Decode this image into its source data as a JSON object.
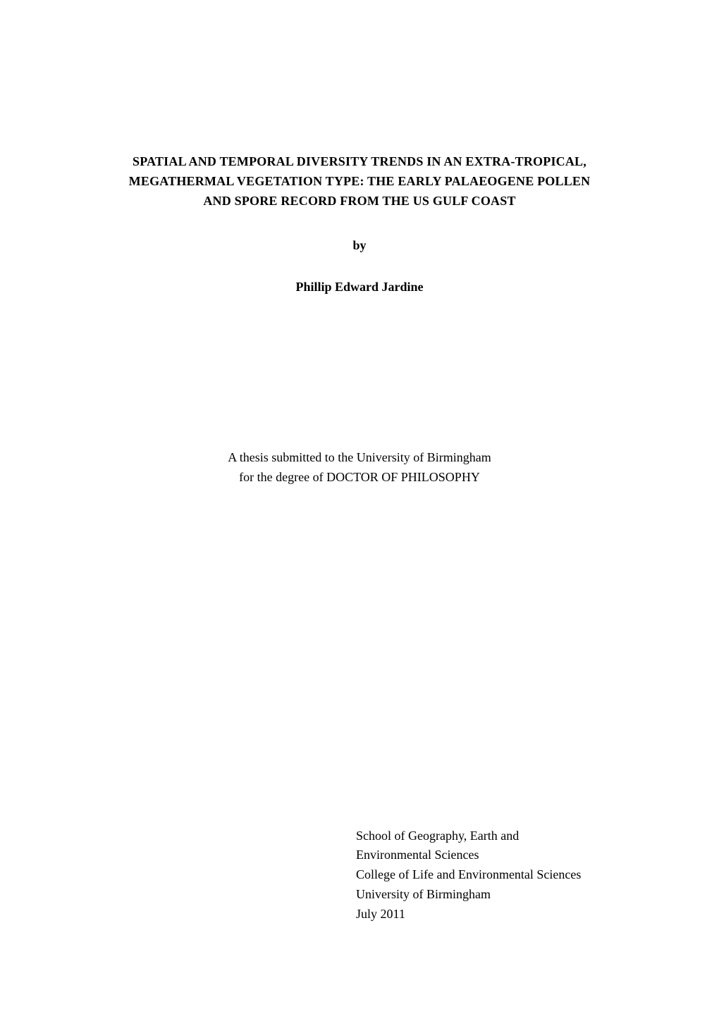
{
  "page": {
    "background_color": "#ffffff",
    "text_color": "#000000",
    "font_family": "Palatino Linotype, Book Antiqua, Palatino, Georgia, serif"
  },
  "title": {
    "line1": "SPATIAL AND TEMPORAL DIVERSITY TRENDS IN AN EXTRA-TROPICAL,",
    "line2": "MEGATHERMAL VEGETATION TYPE: THE EARLY PALAEOGENE POLLEN",
    "line3": "AND SPORE RECORD FROM THE US GULF COAST",
    "font_size_pt": 12,
    "font_weight": "bold"
  },
  "byline": {
    "text": "by",
    "font_size_pt": 12,
    "font_weight": "bold"
  },
  "author": {
    "text": "Phillip Edward Jardine",
    "font_size_pt": 12,
    "font_weight": "bold"
  },
  "submission": {
    "line1": "A thesis submitted to the University of Birmingham",
    "line2": "for the degree of DOCTOR OF PHILOSOPHY",
    "font_size_pt": 12
  },
  "affiliation": {
    "lines": [
      "School of Geography, Earth and",
      "Environmental Sciences",
      "College of Life and Environmental Sciences",
      "University of Birmingham",
      "July 2011"
    ],
    "font_size_pt": 12
  }
}
